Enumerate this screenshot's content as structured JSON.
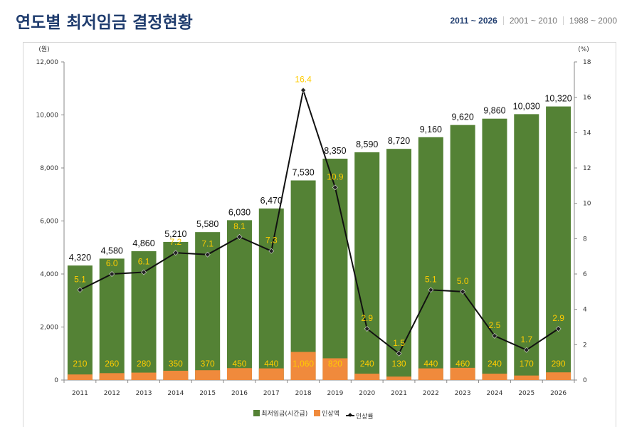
{
  "header": {
    "title": "연도별 최저임금 결정현황",
    "ranges": [
      "2011 ~ 2026",
      "2001 ~ 2010",
      "1988 ~ 2000"
    ],
    "active_range": "2011 ~ 2026"
  },
  "colors": {
    "wage_bar": "#548235",
    "increase_bar": "#f08a3c",
    "rate_line": "#111111",
    "rate_label": "#ffcc00",
    "title": "#1f3c6e"
  },
  "chart_data": {
    "type": "bar",
    "categories": [
      "2011",
      "2012",
      "2013",
      "2014",
      "2015",
      "2016",
      "2017",
      "2018",
      "2019",
      "2020",
      "2021",
      "2022",
      "2023",
      "2024",
      "2025",
      "2026"
    ],
    "series": [
      {
        "name": "최저임금(시간급)",
        "type": "bar",
        "axis": "left",
        "values": [
          4320,
          4580,
          4860,
          5210,
          5580,
          6030,
          6470,
          7530,
          8350,
          8590,
          8720,
          9160,
          9620,
          9860,
          10030,
          10320
        ],
        "labels": [
          "4,320",
          "4,580",
          "4,860",
          "5,210",
          "5,580",
          "6,030",
          "6,470",
          "7,530",
          "8,350",
          "8,590",
          "8,720",
          "9,160",
          "9,620",
          "9,860",
          "10,030",
          "10,320"
        ]
      },
      {
        "name": "인상액",
        "type": "bar",
        "axis": "left",
        "values": [
          210,
          260,
          280,
          350,
          370,
          450,
          440,
          1060,
          820,
          240,
          130,
          440,
          460,
          240,
          170,
          290
        ],
        "labels": [
          "210",
          "260",
          "280",
          "350",
          "370",
          "450",
          "440",
          "1,060",
          "820",
          "240",
          "130",
          "440",
          "460",
          "240",
          "170",
          "290"
        ]
      },
      {
        "name": "인상률",
        "type": "line",
        "axis": "right",
        "values": [
          5.1,
          6.0,
          6.1,
          7.2,
          7.1,
          8.1,
          7.3,
          16.4,
          10.9,
          2.9,
          1.5,
          5.1,
          5.0,
          2.5,
          1.7,
          2.9
        ],
        "labels": [
          "5.1",
          "6.0",
          "6.1",
          "7.2",
          "7.1",
          "8.1",
          "7.3",
          "16.4",
          "10.9",
          "2.9",
          "1.5",
          "5.1",
          "5.0",
          "2.5",
          "1.7",
          "2.9"
        ]
      }
    ],
    "y_left": {
      "unit": "(원)",
      "min": 0,
      "max": 12000,
      "ticks": [
        0,
        2000,
        4000,
        6000,
        8000,
        10000,
        12000
      ],
      "tick_labels": [
        "0",
        "2,000",
        "4,000",
        "6,000",
        "8,000",
        "10,000",
        "12,000"
      ]
    },
    "y_right": {
      "unit": "(%)",
      "min": 0,
      "max": 18,
      "ticks": [
        0,
        2,
        4,
        6,
        8,
        10,
        12,
        14,
        16,
        18
      ],
      "tick_labels": [
        "0",
        "2",
        "4",
        "6",
        "8",
        "10",
        "12",
        "14",
        "16",
        "18"
      ]
    },
    "grid": false,
    "legend_position": "bottom"
  }
}
